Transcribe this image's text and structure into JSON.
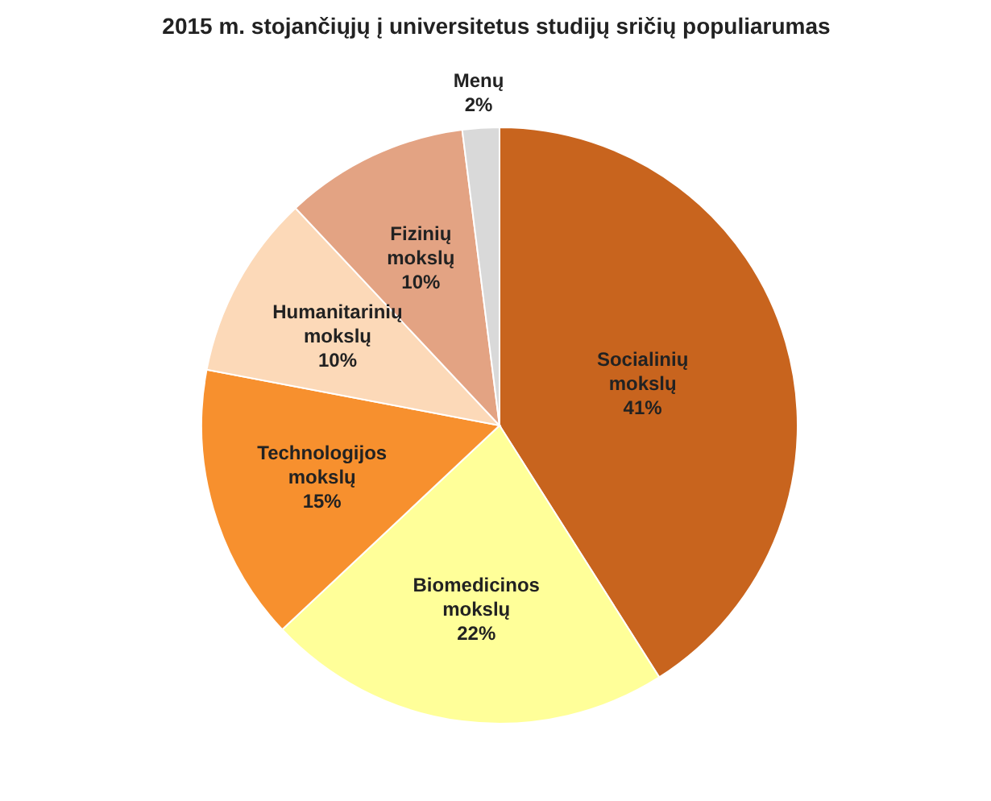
{
  "chart_data": {
    "type": "pie",
    "title": "2015 m. stojančiųjų į universitetus studijų sričių populiarumas",
    "categories": [
      "Socialinių mokslų",
      "Biomedicinos mokslų",
      "Technologijos mokslų",
      "Humanitarinių mokslų",
      "Fizinių mokslų",
      "Menų"
    ],
    "values": [
      41,
      22,
      15,
      10,
      10,
      2
    ],
    "value_labels": [
      "41%",
      "22%",
      "15%",
      "10%",
      "10%",
      "2%"
    ],
    "colors": [
      "#c8641e",
      "#ffff99",
      "#f7902e",
      "#fcd9b8",
      "#e3a383",
      "#d9d9d9"
    ]
  }
}
